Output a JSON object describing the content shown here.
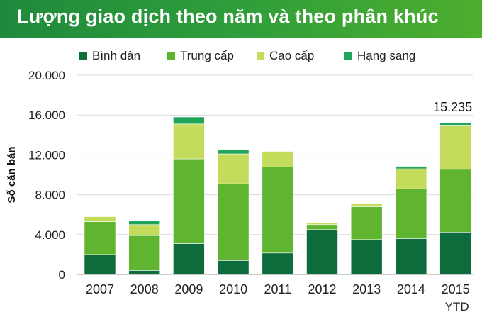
{
  "header": {
    "title": "Lượng giao dịch theo năm và theo phân khúc"
  },
  "colors": {
    "header_start": "#1f8a3c",
    "header_end": "#4dae2e",
    "gridline": "#d9d9d9",
    "axis_text": "#222222"
  },
  "chart_data": {
    "type": "bar",
    "stacked": true,
    "title": "",
    "xlabel": "",
    "ylabel": "Số căn bán",
    "ylim": [
      0,
      20000
    ],
    "yticks": [
      0,
      4000,
      8000,
      12000,
      16000,
      20000
    ],
    "ytick_labels": [
      "0",
      "4.000",
      "8.000",
      "12.000",
      "16.000",
      "20.000"
    ],
    "grid": true,
    "legend_position": "top",
    "categories": [
      "2007",
      "2008",
      "2009",
      "2010",
      "2011",
      "2012",
      "2013",
      "2014",
      "2015"
    ],
    "category_sublabels": [
      "",
      "",
      "",
      "",
      "",
      "",
      "",
      "",
      "YTD"
    ],
    "series": [
      {
        "name": "Bình dân",
        "color": "#0e6b3c",
        "values": [
          2000,
          400,
          3100,
          1400,
          2150,
          4500,
          3500,
          3600,
          4250
        ]
      },
      {
        "name": "Trung cấp",
        "color": "#5fb52f",
        "values": [
          3300,
          3500,
          8500,
          7700,
          8650,
          500,
          3300,
          5000,
          6300
        ]
      },
      {
        "name": "Cao cấp",
        "color": "#c3dc5c",
        "values": [
          500,
          1100,
          3500,
          3000,
          1550,
          200,
          350,
          2000,
          4435
        ]
      },
      {
        "name": "Hạng sang",
        "color": "#21a55a",
        "values": [
          0,
          400,
          700,
          400,
          0,
          0,
          0,
          250,
          250
        ]
      }
    ],
    "annotations": [
      {
        "category": "2015",
        "text": "15.235"
      }
    ]
  }
}
